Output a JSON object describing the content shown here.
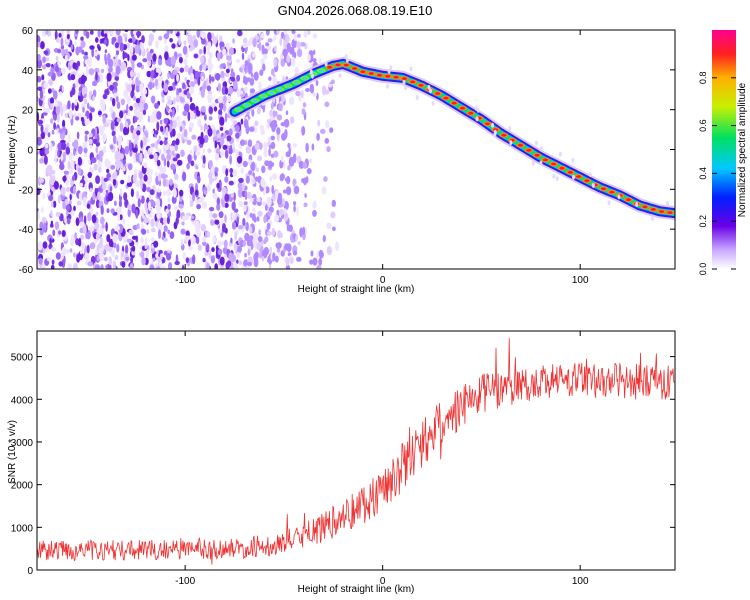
{
  "title": "GN04.2026.068.08.19.E10",
  "chart_data": [
    {
      "type": "heatmap",
      "xlabel": "Height of straight line (km)",
      "ylabel": "Frequency (Hz)",
      "xlim": [
        -175,
        148
      ],
      "ylim": [
        -60,
        60
      ],
      "xticks": [
        -100,
        0,
        100
      ],
      "yticks": [
        60,
        40,
        20,
        0,
        -20,
        -40,
        -60
      ],
      "colorbar": {
        "label": "Normalized spectral amplitude",
        "ticks": [
          "0.0",
          "0.2",
          "0.4",
          "0.6",
          "0.8"
        ],
        "range": [
          0,
          1
        ]
      },
      "ridge": {
        "x": [
          -75,
          -60,
          -45,
          -35,
          -25,
          -20,
          -15,
          -10,
          0,
          10,
          20,
          30,
          40,
          50,
          60,
          70,
          80,
          90,
          100,
          110,
          120,
          130,
          140,
          148
        ],
        "y": [
          19,
          27,
          33,
          38,
          42,
          43,
          41,
          39,
          37,
          36,
          32,
          27,
          21,
          15,
          8,
          2,
          -4,
          -9,
          -14,
          -19,
          -23,
          -28,
          -31,
          -32
        ]
      },
      "noise_region_x": [
        -175,
        -45
      ]
    },
    {
      "type": "line",
      "xlabel": "Height of straight line (km)",
      "ylabel": "SNR (10 * v/v)",
      "xlim": [
        -175,
        148
      ],
      "ylim": [
        0,
        5600
      ],
      "xticks": [
        -100,
        0,
        100
      ],
      "yticks": [
        0,
        1000,
        2000,
        3000,
        4000,
        5000
      ],
      "color": "#ee3333",
      "series": [
        {
          "x": [
            -175,
            -150,
            -125,
            -100,
            -75,
            -60,
            -50,
            -40,
            -30,
            -20,
            -10,
            0,
            10,
            20,
            30,
            40,
            50,
            60,
            70,
            80,
            90,
            100,
            110,
            120,
            130,
            148
          ],
          "values": [
            450,
            460,
            470,
            480,
            500,
            560,
            650,
            800,
            1000,
            1250,
            1550,
            1900,
            2400,
            2950,
            3450,
            3850,
            4100,
            4250,
            4350,
            4400,
            4450,
            4450,
            4450,
            4450,
            4400,
            4400
          ],
          "spread": [
            400,
            400,
            400,
            400,
            400,
            420,
            450,
            500,
            600,
            700,
            800,
            900,
            950,
            950,
            900,
            850,
            800,
            750,
            700,
            700,
            700,
            700,
            700,
            700,
            700,
            700
          ]
        }
      ]
    }
  ]
}
